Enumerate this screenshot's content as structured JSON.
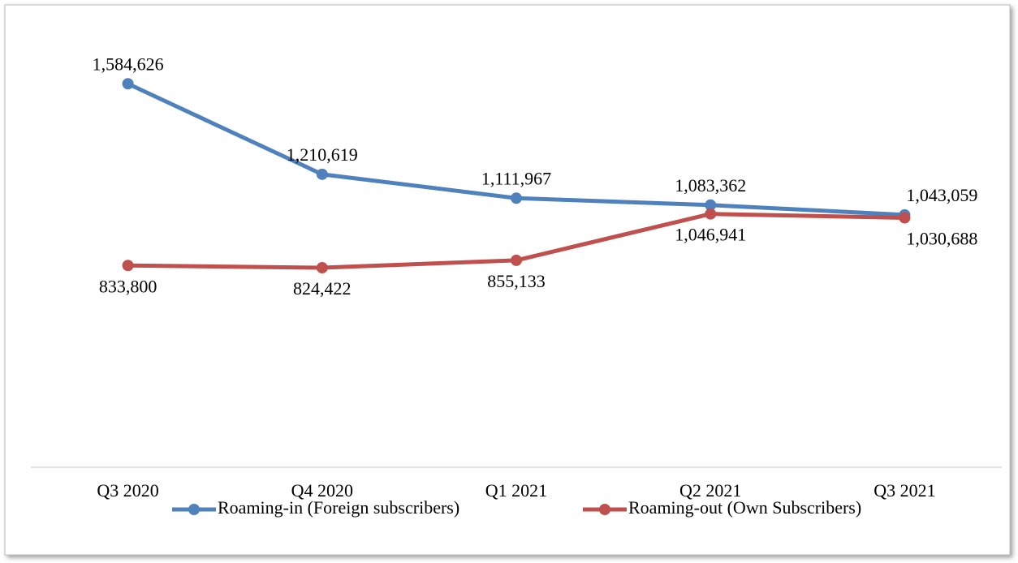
{
  "chart_data": {
    "type": "line",
    "categories": [
      "Q3 2020",
      "Q4 2020",
      "Q1 2021",
      "Q2 2021",
      "Q3 2021"
    ],
    "series": [
      {
        "name": "Roaming-in (Foreign subscribers)",
        "color": "#4f81bd",
        "values": [
          1584626,
          1210619,
          1111967,
          1083362,
          1043059
        ],
        "value_labels": [
          "1,584,626",
          "1,210,619",
          "1,111,967",
          "1,083,362",
          "1,043,059"
        ]
      },
      {
        "name": "Roaming-out (Own Subscribers)",
        "color": "#c0504d",
        "values": [
          833800,
          824422,
          855133,
          1046941,
          1030688
        ],
        "value_labels": [
          "833,800",
          "824,422",
          "855,133",
          "1,046,941",
          "1,030,688"
        ]
      }
    ],
    "ylim": [
      0,
      1800000
    ]
  }
}
